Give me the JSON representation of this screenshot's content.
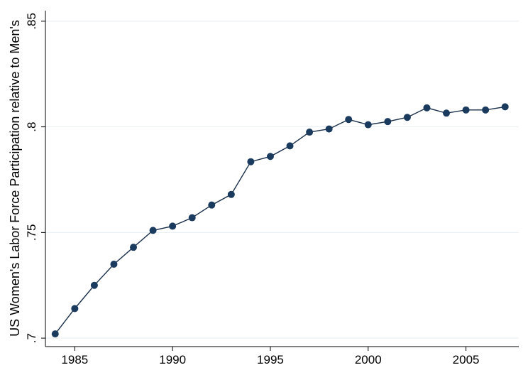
{
  "chart_data": {
    "type": "line",
    "title": "",
    "xlabel": "",
    "ylabel": "US Women's Labor Force Participation relative to Men's",
    "xlim": [
      1983.5,
      2007.7
    ],
    "ylim": [
      0.696,
      0.855
    ],
    "x_ticks": [
      1985,
      1990,
      1995,
      2000,
      2005
    ],
    "x_tick_labels": [
      "1985",
      "1990",
      "1995",
      "2000",
      "2005"
    ],
    "y_ticks": [
      0.7,
      0.75,
      0.8,
      0.85
    ],
    "y_tick_labels": [
      ".7",
      ".75",
      ".8",
      ".85"
    ],
    "grid": "horizontal",
    "colors": {
      "line": "#1a2f4a",
      "marker": "#1a3a5e",
      "grid": "#e8eef2",
      "axis": "#000000"
    },
    "series": [
      {
        "x": [
          1984,
          1985,
          1986,
          1987,
          1988,
          1989,
          1990,
          1991,
          1992,
          1993,
          1994,
          1995,
          1996,
          1997,
          1998,
          1999,
          2000,
          2001,
          2002,
          2003,
          2004,
          2005,
          2006,
          2007
        ],
        "values": [
          0.702,
          0.714,
          0.725,
          0.735,
          0.743,
          0.751,
          0.753,
          0.757,
          0.763,
          0.768,
          0.7835,
          0.786,
          0.791,
          0.7975,
          0.799,
          0.8035,
          0.801,
          0.8025,
          0.8045,
          0.809,
          0.8065,
          0.808,
          0.808,
          0.8095
        ]
      }
    ]
  }
}
